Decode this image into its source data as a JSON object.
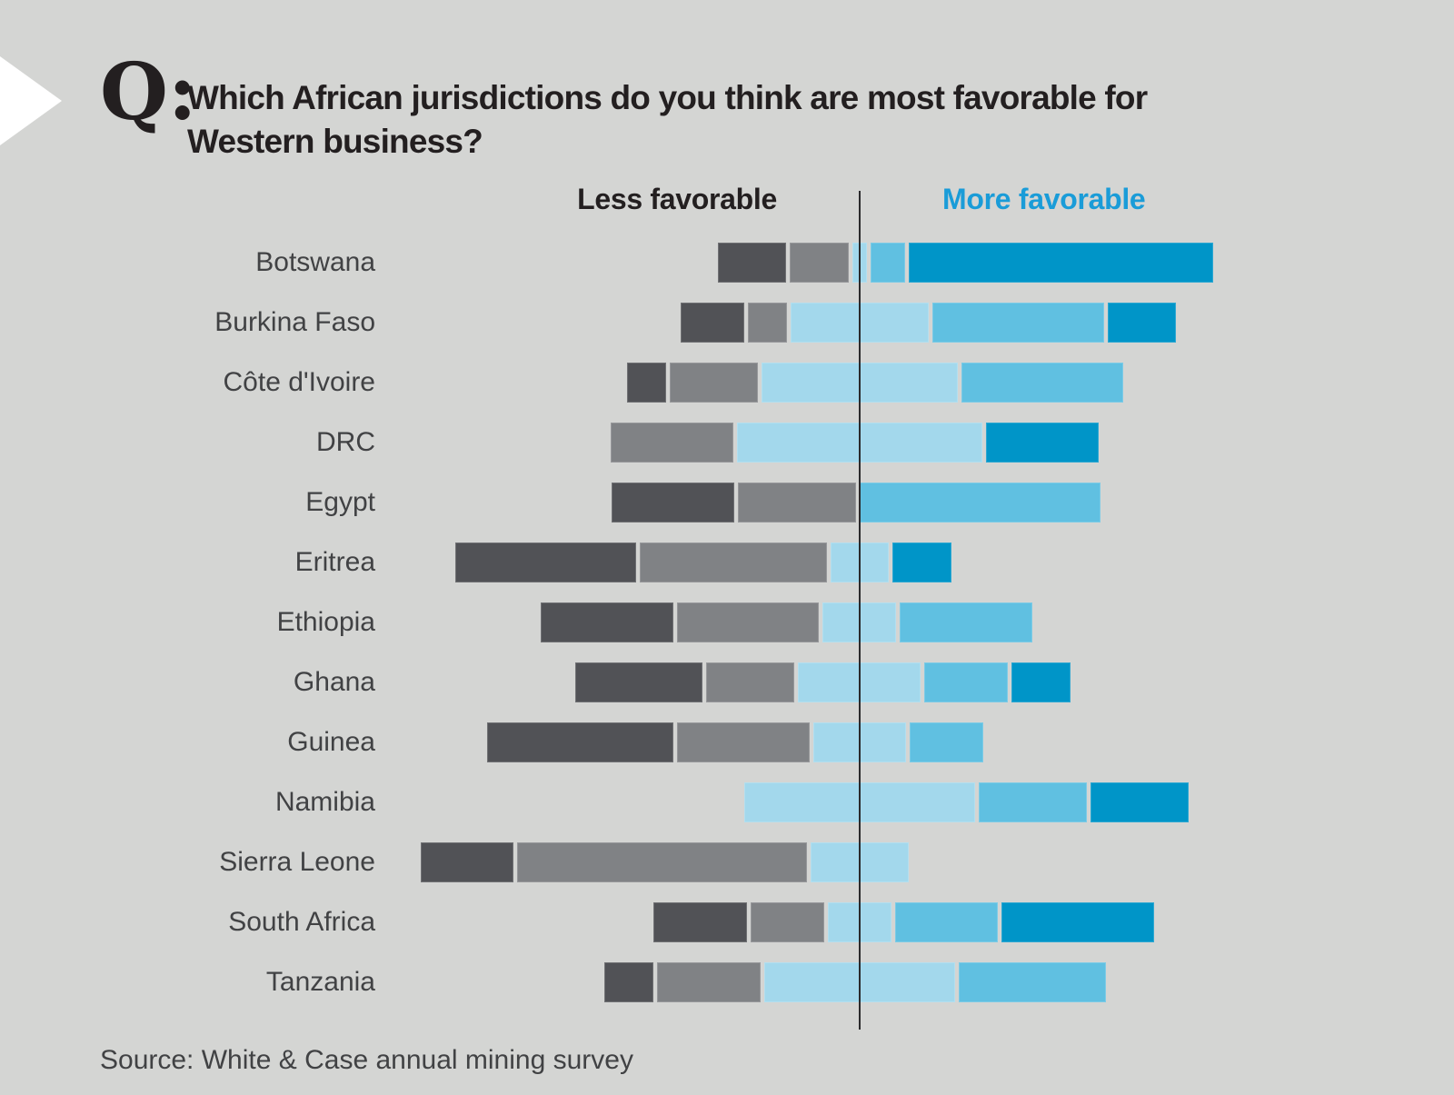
{
  "header": {
    "q_label": "Q:",
    "title": "Which African jurisdictions do you think are most favorable for Western business?"
  },
  "chart_data": {
    "type": "diverging-stacked-bar",
    "title": "Which African jurisdictions do you think are most favorable for Western business?",
    "left_header": "Less favorable",
    "right_header": "More favorable",
    "scale": [
      "least_favorable",
      "less_favorable",
      "neutral",
      "more_favorable",
      "most_favorable"
    ],
    "colors": {
      "least_favorable": "#515256",
      "less_favorable": "#808285",
      "neutral": "#A3D8EC",
      "more_favorable": "#60C0E1",
      "most_favorable": "#0095C8"
    },
    "layout_note": "neutral segment centered on vertical divider line",
    "rows": [
      {
        "label": "Botswana",
        "values": [
          14,
          12,
          3,
          7,
          62
        ]
      },
      {
        "label": "Burkina Faso",
        "values": [
          13,
          8,
          28,
          35,
          14
        ]
      },
      {
        "label": "Côte d'Ivoire",
        "values": [
          8,
          18,
          40,
          33,
          0
        ]
      },
      {
        "label": "DRC",
        "values": [
          0,
          25,
          50,
          0,
          23
        ]
      },
      {
        "label": "Egypt",
        "values": [
          25,
          24,
          0,
          49,
          0
        ]
      },
      {
        "label": "Eritrea",
        "values": [
          37,
          38,
          12,
          0,
          12
        ]
      },
      {
        "label": "Ethiopia",
        "values": [
          27,
          29,
          15,
          27,
          0
        ]
      },
      {
        "label": "Ghana",
        "values": [
          26,
          18,
          25,
          17,
          12
        ]
      },
      {
        "label": "Guinea",
        "values": [
          38,
          27,
          19,
          15,
          0
        ]
      },
      {
        "label": "Namibia",
        "values": [
          0,
          0,
          47,
          22,
          20
        ]
      },
      {
        "label": "Sierra Leone",
        "values": [
          19,
          59,
          20,
          0,
          0
        ]
      },
      {
        "label": "South Africa",
        "values": [
          19,
          15,
          13,
          21,
          31
        ]
      },
      {
        "label": "Tanzania",
        "values": [
          10,
          21,
          39,
          30,
          0
        ]
      }
    ]
  },
  "footer": {
    "source": "Source: White & Case annual mining survey"
  },
  "colors": {
    "background": "#D4D5D3",
    "header_text": "#231F20",
    "accent_blue": "#1A9CD8",
    "label_text": "#414244",
    "axis_line": "#2A2A2C",
    "arrow": "#FFFFFF"
  }
}
